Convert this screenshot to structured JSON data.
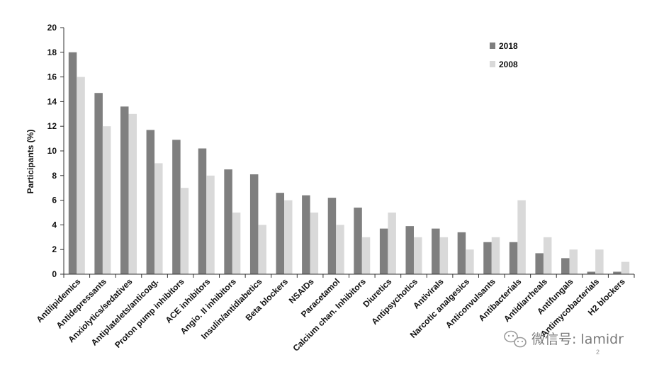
{
  "chart_data": {
    "type": "bar",
    "ylabel": "Participants (%)",
    "ylim": [
      0,
      20
    ],
    "yticks": [
      0,
      2,
      4,
      6,
      8,
      10,
      12,
      14,
      16,
      18,
      20
    ],
    "legend_position": "top-right",
    "categories": [
      "Antilipidemics",
      "Antidepressants",
      "Anxiolytics/sedatives",
      "Antiplatelets/anticoag.",
      "Proton pump inhibitors",
      "ACE inhibitors",
      "Angio. II inhibitors",
      "Insulin/antidiabetics",
      "Beta blockers",
      "NSAIDs",
      "Paracetamol",
      "Calcium chan. Inhibitors",
      "Diuretics",
      "Antipsychotics",
      "Antivirals",
      "Narcotic analgesics",
      "Anticonvulsants",
      "Antibacterials",
      "Antidiarrheals",
      "Antifungals",
      "Antimycobacterials",
      "H2 blockers"
    ],
    "series": [
      {
        "name": "2018",
        "color": "#7f7f7f",
        "values": [
          18.0,
          14.7,
          13.6,
          11.7,
          10.9,
          10.2,
          8.5,
          8.1,
          6.6,
          6.4,
          6.2,
          5.4,
          3.7,
          3.9,
          3.7,
          3.4,
          2.6,
          2.6,
          1.7,
          1.3,
          0.2,
          0.2
        ]
      },
      {
        "name": "2008",
        "color": "#d9d9d9",
        "values": [
          16.0,
          12.0,
          13.0,
          9.0,
          7.0,
          8.0,
          5.0,
          4.0,
          6.0,
          5.0,
          4.0,
          3.0,
          5.0,
          3.0,
          3.0,
          2.0,
          3.0,
          6.0,
          3.0,
          2.0,
          2.0,
          1.0
        ]
      }
    ]
  },
  "watermark": {
    "text": "微信号: lamidr",
    "icon": "wechat-icon"
  },
  "page_number": "2"
}
